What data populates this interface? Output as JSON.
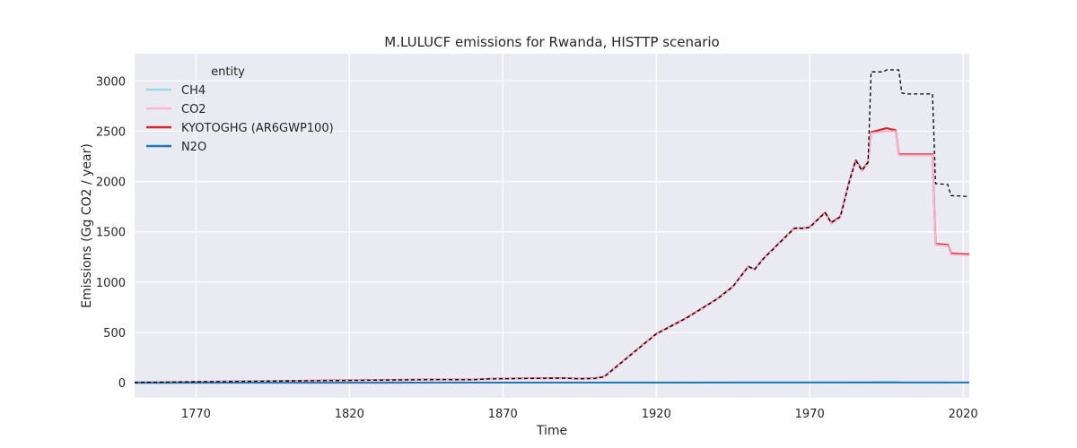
{
  "chart_data": {
    "type": "line",
    "title": "M.LULUCF emissions for Rwanda, HISTTP scenario",
    "xlabel": "Time",
    "ylabel": "Emissions (Gg CO2 / year)",
    "xlim": [
      1750,
      2022
    ],
    "ylim": [
      -150,
      3270
    ],
    "xticks": [
      1770,
      1820,
      1870,
      1920,
      1970,
      2020
    ],
    "yticks": [
      0,
      500,
      1000,
      1500,
      2000,
      2500,
      3000
    ],
    "grid": true,
    "legend": {
      "title": "entity",
      "placement": "top-left"
    },
    "series": [
      {
        "name": "CH4",
        "color": "#9edae5",
        "style": "solid",
        "points": [
          [
            1750,
            0
          ],
          [
            1850,
            1
          ],
          [
            1900,
            2
          ],
          [
            1950,
            4
          ],
          [
            1980,
            6
          ],
          [
            1990,
            8
          ],
          [
            1995,
            14
          ],
          [
            1998,
            10
          ],
          [
            2000,
            4
          ],
          [
            2010,
            2
          ],
          [
            2022,
            1
          ]
        ]
      },
      {
        "name": "CO2",
        "color": "#f7b6d2",
        "style": "solid",
        "points": [
          [
            1750,
            2
          ],
          [
            1800,
            15
          ],
          [
            1850,
            30
          ],
          [
            1860,
            28
          ],
          [
            1865,
            35
          ],
          [
            1870,
            38
          ],
          [
            1880,
            40
          ],
          [
            1890,
            42
          ],
          [
            1895,
            36
          ],
          [
            1900,
            40
          ],
          [
            1903,
            55
          ],
          [
            1910,
            230
          ],
          [
            1920,
            480
          ],
          [
            1930,
            640
          ],
          [
            1940,
            830
          ],
          [
            1945,
            950
          ],
          [
            1950,
            1150
          ],
          [
            1952,
            1120
          ],
          [
            1955,
            1230
          ],
          [
            1960,
            1380
          ],
          [
            1965,
            1530
          ],
          [
            1968,
            1530
          ],
          [
            1970,
            1540
          ],
          [
            1975,
            1680
          ],
          [
            1977,
            1580
          ],
          [
            1980,
            1640
          ],
          [
            1983,
            2000
          ],
          [
            1985,
            2200
          ],
          [
            1987,
            2100
          ],
          [
            1989,
            2180
          ],
          [
            1990,
            2480
          ],
          [
            1995,
            2500
          ],
          [
            1998,
            2500
          ],
          [
            1999,
            2260
          ],
          [
            2010,
            2260
          ],
          [
            2011,
            1370
          ],
          [
            2015,
            1360
          ],
          [
            2016,
            1275
          ],
          [
            2022,
            1265
          ]
        ]
      },
      {
        "name": "KYOTOGHG (AR6GWP100)",
        "color": "#d62728",
        "style": "solid",
        "points": [
          [
            1750,
            3
          ],
          [
            1800,
            17
          ],
          [
            1850,
            32
          ],
          [
            1860,
            30
          ],
          [
            1865,
            37
          ],
          [
            1870,
            40
          ],
          [
            1880,
            43
          ],
          [
            1890,
            45
          ],
          [
            1895,
            39
          ],
          [
            1900,
            43
          ],
          [
            1903,
            58
          ],
          [
            1910,
            235
          ],
          [
            1920,
            485
          ],
          [
            1930,
            645
          ],
          [
            1940,
            835
          ],
          [
            1945,
            955
          ],
          [
            1950,
            1155
          ],
          [
            1952,
            1125
          ],
          [
            1955,
            1235
          ],
          [
            1960,
            1385
          ],
          [
            1965,
            1535
          ],
          [
            1968,
            1535
          ],
          [
            1970,
            1545
          ],
          [
            1975,
            1690
          ],
          [
            1977,
            1590
          ],
          [
            1980,
            1650
          ],
          [
            1983,
            2010
          ],
          [
            1985,
            2210
          ],
          [
            1987,
            2110
          ],
          [
            1989,
            2190
          ],
          [
            1990,
            2490
          ],
          [
            1995,
            2530
          ],
          [
            1998,
            2510
          ],
          [
            1999,
            2270
          ],
          [
            2010,
            2270
          ],
          [
            2011,
            1380
          ],
          [
            2015,
            1370
          ],
          [
            2016,
            1285
          ],
          [
            2022,
            1275
          ]
        ]
      },
      {
        "name": "N2O",
        "color": "#1f77b4",
        "style": "solid",
        "points": [
          [
            1750,
            0
          ],
          [
            1900,
            1
          ],
          [
            1950,
            2
          ],
          [
            2022,
            2
          ]
        ]
      },
      {
        "name": "",
        "color": "#000000",
        "style": "dashed",
        "points": [
          [
            1750,
            3
          ],
          [
            1800,
            17
          ],
          [
            1850,
            32
          ],
          [
            1860,
            30
          ],
          [
            1865,
            37
          ],
          [
            1870,
            40
          ],
          [
            1880,
            43
          ],
          [
            1890,
            45
          ],
          [
            1895,
            39
          ],
          [
            1900,
            43
          ],
          [
            1903,
            58
          ],
          [
            1910,
            235
          ],
          [
            1920,
            485
          ],
          [
            1930,
            645
          ],
          [
            1940,
            835
          ],
          [
            1945,
            955
          ],
          [
            1950,
            1155
          ],
          [
            1952,
            1125
          ],
          [
            1955,
            1235
          ],
          [
            1960,
            1385
          ],
          [
            1965,
            1535
          ],
          [
            1968,
            1535
          ],
          [
            1970,
            1545
          ],
          [
            1975,
            1690
          ],
          [
            1977,
            1590
          ],
          [
            1980,
            1650
          ],
          [
            1983,
            2010
          ],
          [
            1985,
            2210
          ],
          [
            1987,
            2110
          ],
          [
            1989,
            2190
          ],
          [
            1990,
            3090
          ],
          [
            1994,
            3090
          ],
          [
            1995,
            3110
          ],
          [
            1999,
            3110
          ],
          [
            2000,
            2880
          ],
          [
            2002,
            2870
          ],
          [
            2010,
            2870
          ],
          [
            2011,
            1980
          ],
          [
            2015,
            1970
          ],
          [
            2016,
            1860
          ],
          [
            2022,
            1850
          ]
        ]
      }
    ]
  }
}
